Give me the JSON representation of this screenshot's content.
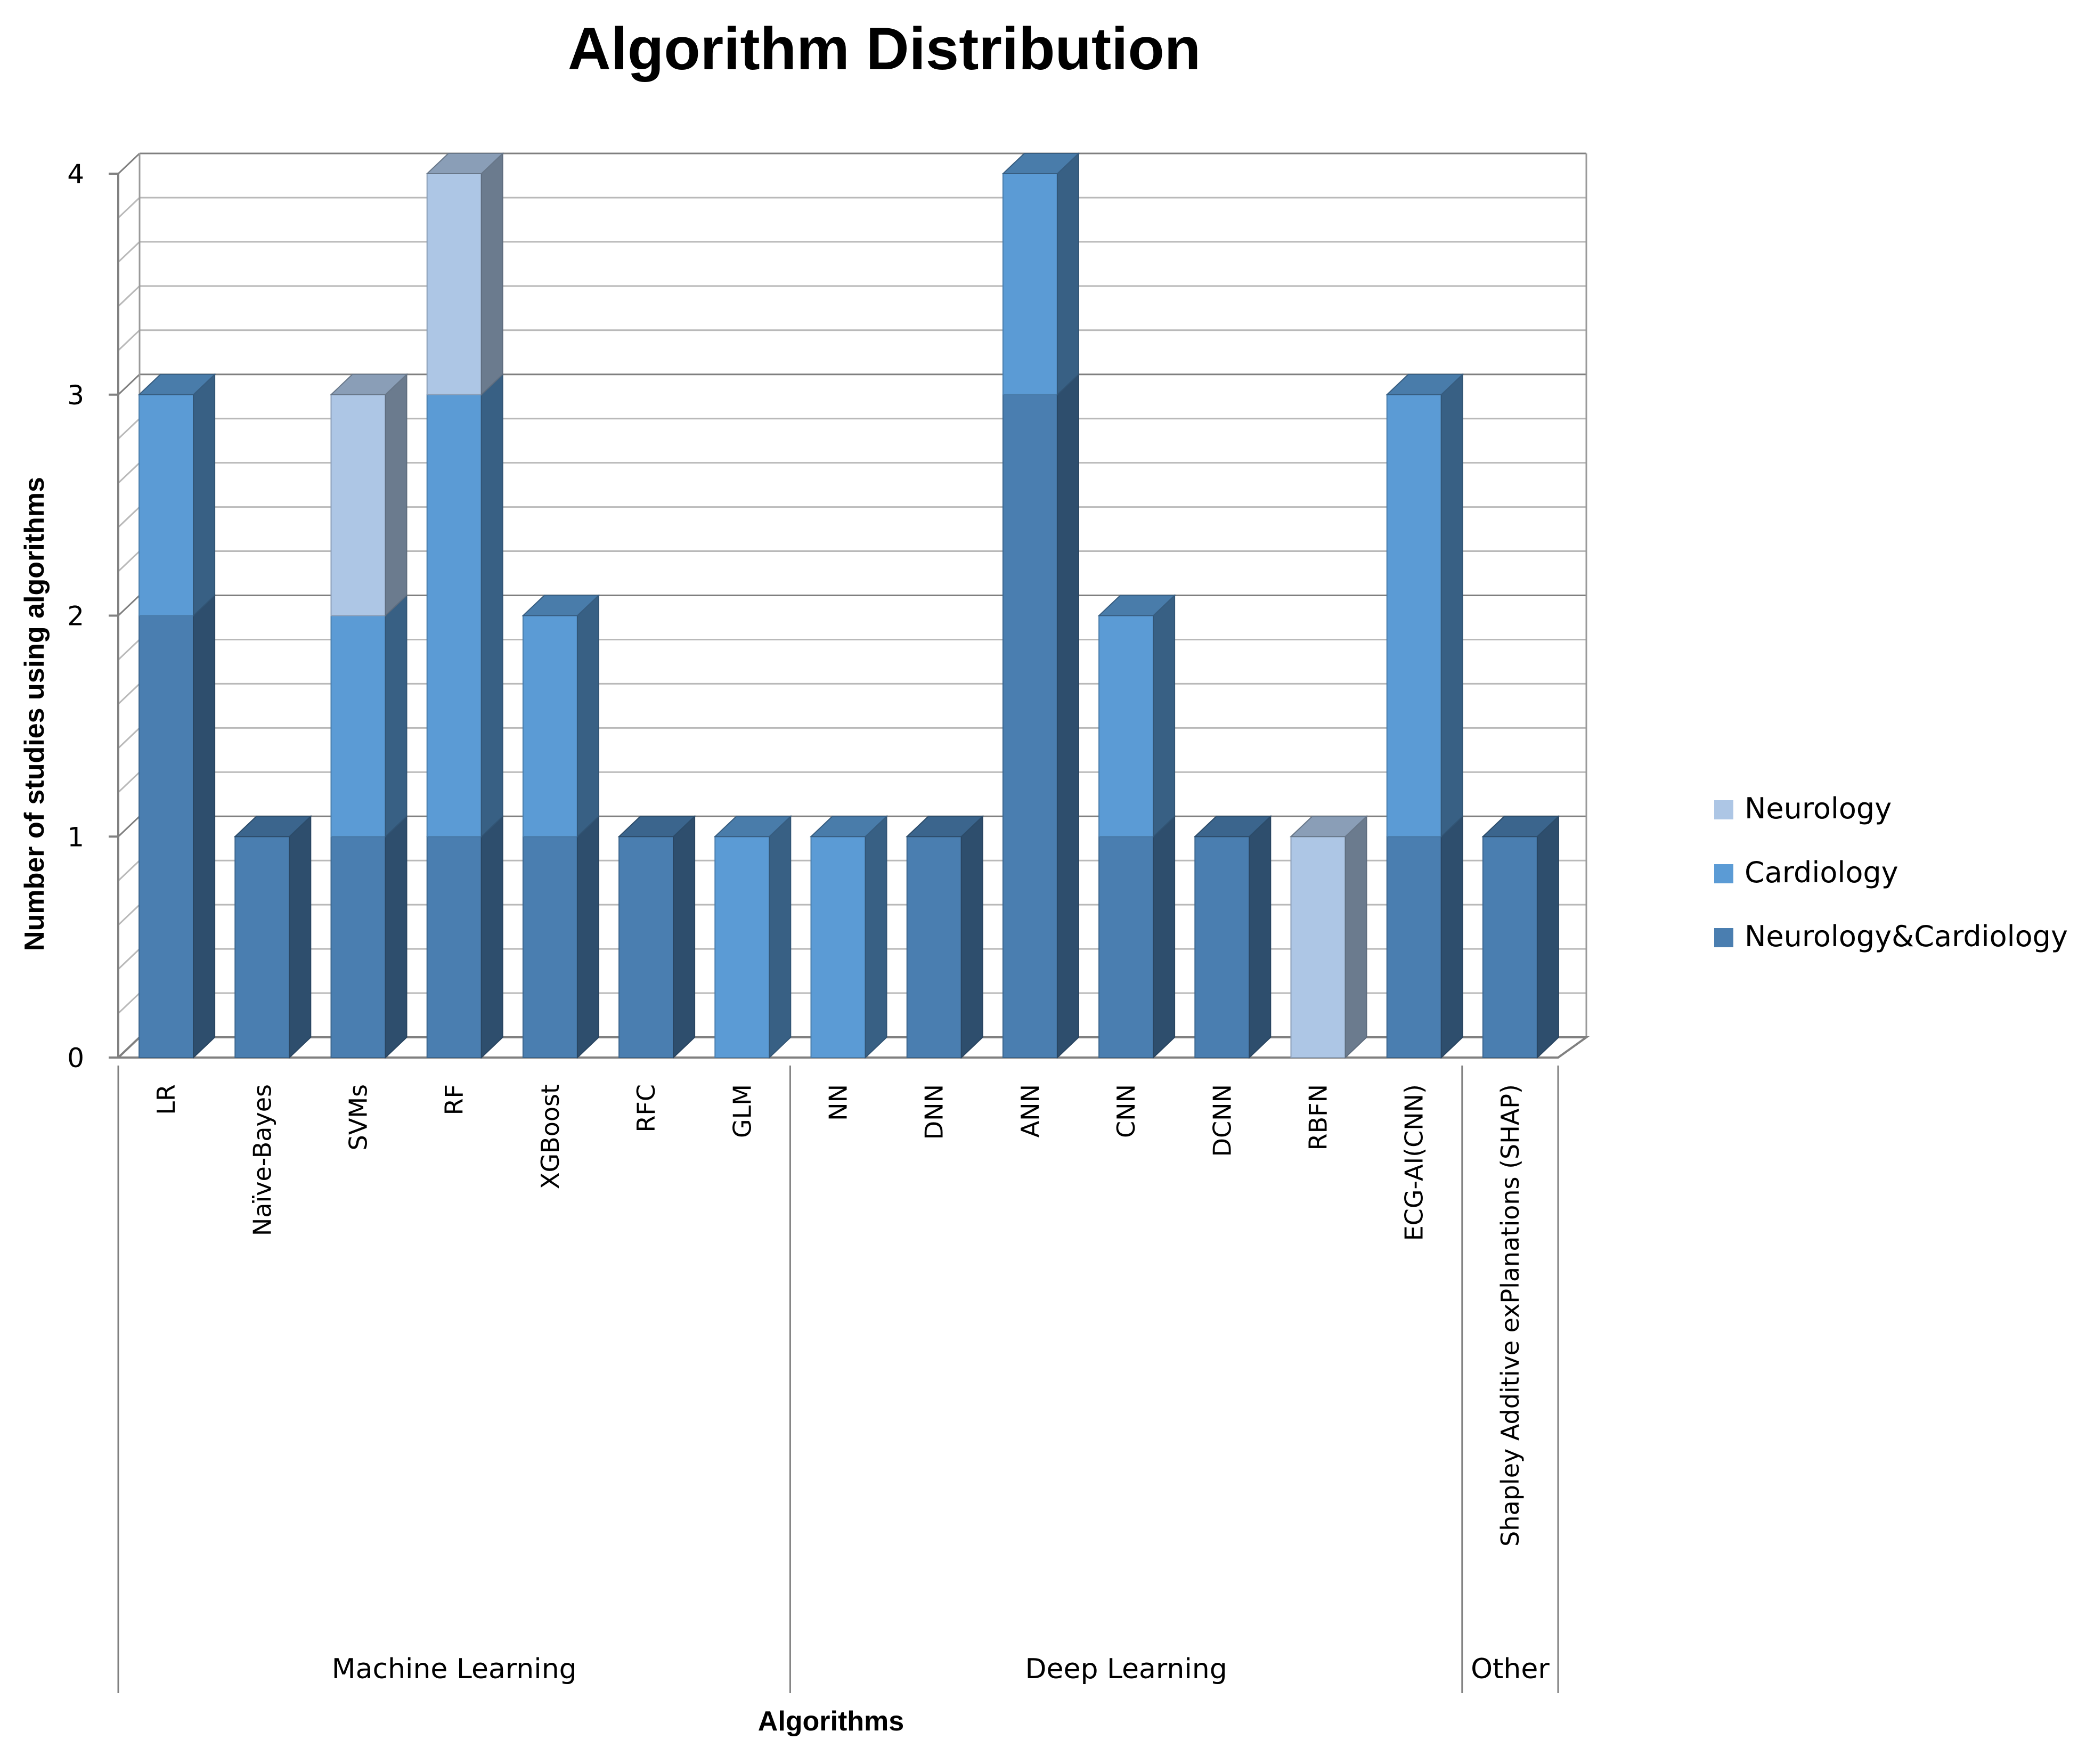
{
  "chart_data": {
    "type": "bar",
    "stacked": true,
    "three_d": true,
    "title": "Algorithm Distribution",
    "xlabel": "Algorithms",
    "ylabel": "Number of studies using algorithms",
    "ylim": [
      0,
      4
    ],
    "yticks": [
      0,
      1,
      2,
      3,
      4
    ],
    "grid": true,
    "legend_position": "right",
    "categories": [
      "LR",
      "Naïve-Bayes",
      "SVMs",
      "RF",
      "XGBoost",
      "RFC",
      "GLM",
      "NN",
      "DNN",
      "ANN",
      "CNN",
      "DCNN",
      "RBFN",
      "ECG-AI(CNN)",
      "Shapley Additive exPlanations (SHAP)"
    ],
    "groups": [
      {
        "label": "Machine Learning",
        "categories": [
          "LR",
          "Naïve-Bayes",
          "SVMs",
          "RF",
          "XGBoost",
          "RFC",
          "GLM"
        ]
      },
      {
        "label": "Deep Learning",
        "categories": [
          "NN",
          "DNN",
          "ANN",
          "CNN",
          "DCNN",
          "RBFN",
          "ECG-AI(CNN)"
        ]
      },
      {
        "label": "Other",
        "categories": [
          "Shapley Additive exPlanations (SHAP)"
        ]
      }
    ],
    "series": [
      {
        "name": "Neurology&Cardiology",
        "color": "#4a7eb0",
        "values": [
          2,
          1,
          1,
          1,
          1,
          1,
          0,
          0,
          1,
          3,
          1,
          1,
          0,
          1,
          1
        ]
      },
      {
        "name": "Cardiology",
        "color": "#5b9bd5",
        "values": [
          1,
          0,
          1,
          2,
          1,
          0,
          1,
          1,
          0,
          1,
          1,
          0,
          0,
          2,
          0
        ]
      },
      {
        "name": "Neurology",
        "color": "#adc6e5",
        "values": [
          0,
          0,
          1,
          1,
          0,
          0,
          0,
          0,
          0,
          0,
          0,
          0,
          1,
          0,
          0
        ]
      }
    ],
    "legend_order": [
      "Neurology",
      "Cardiology",
      "Neurology&Cardiology"
    ]
  }
}
